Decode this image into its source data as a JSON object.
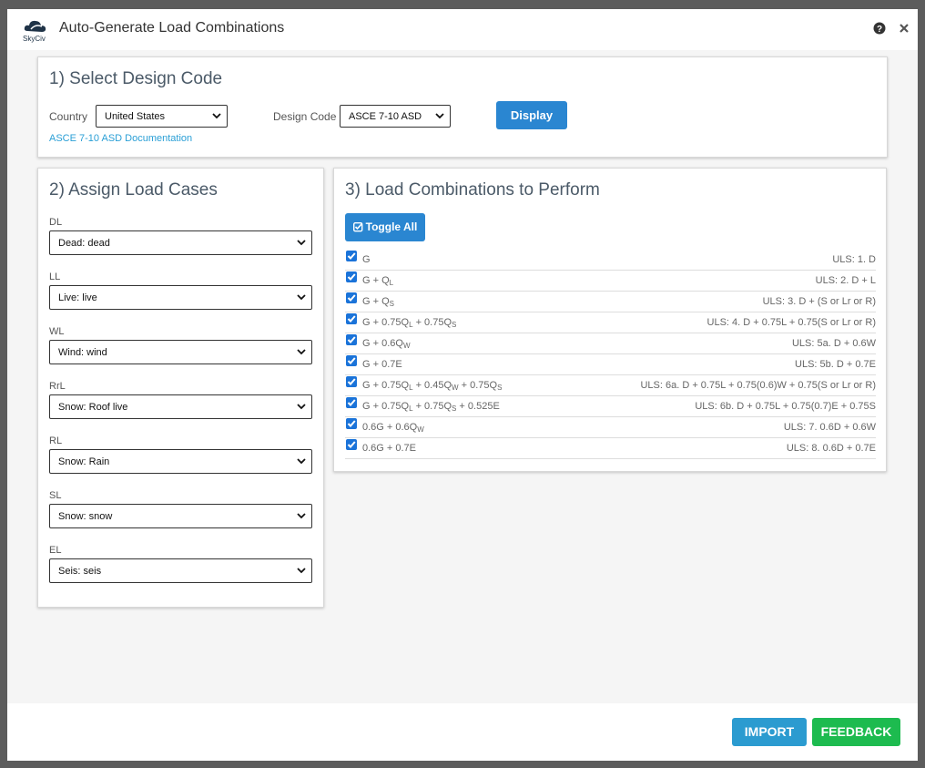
{
  "header": {
    "logo": "SkyCiv",
    "title": "Auto-Generate Load Combinations"
  },
  "design_code": {
    "title": "1) Select Design Code",
    "country_label": "Country",
    "country": "United States",
    "design_code_label": "Design Code",
    "design_code": "ASCE 7-10 ASD",
    "display_button": "Display",
    "documentation_link": "ASCE 7-10 ASD Documentation"
  },
  "load_cases": {
    "title": "2) Assign Load Cases",
    "fields": [
      {
        "label": "DL",
        "value": "Dead: dead"
      },
      {
        "label": "LL",
        "value": "Live: live"
      },
      {
        "label": "WL",
        "value": "Wind: wind"
      },
      {
        "label": "RrL",
        "value": "Snow: Roof live"
      },
      {
        "label": "RL",
        "value": "Snow: Rain"
      },
      {
        "label": "SL",
        "value": "Snow: snow"
      },
      {
        "label": "EL",
        "value": "Seis: seis"
      }
    ]
  },
  "combinations": {
    "title": "3) Load Combinations to Perform",
    "toggle_button": "Toggle All",
    "rows": [
      {
        "checked": true,
        "formula": [
          "G"
        ],
        "code": "ULS: 1. D"
      },
      {
        "checked": true,
        "formula": [
          "G + Q",
          "L"
        ],
        "code": "ULS: 2. D + L"
      },
      {
        "checked": true,
        "formula": [
          "G + Q",
          "S"
        ],
        "code": "ULS: 3. D + (S or Lr or R)"
      },
      {
        "checked": true,
        "formula": [
          "G + 0.75Q",
          "L",
          " + 0.75Q",
          "S"
        ],
        "code": "ULS: 4. D + 0.75L + 0.75(S or Lr or R)"
      },
      {
        "checked": true,
        "formula": [
          "G + 0.6Q",
          "W"
        ],
        "code": "ULS: 5a. D + 0.6W"
      },
      {
        "checked": true,
        "formula": [
          "G + 0.7E"
        ],
        "code": "ULS: 5b. D + 0.7E"
      },
      {
        "checked": true,
        "formula": [
          "G + 0.75Q",
          "L",
          " + 0.45Q",
          "W",
          " + 0.75Q",
          "S"
        ],
        "code": "ULS: 6a. D + 0.75L + 0.75(0.6)W + 0.75(S or Lr or R)"
      },
      {
        "checked": true,
        "formula": [
          "G + 0.75Q",
          "L",
          " + 0.75Q",
          "S",
          " + 0.525E"
        ],
        "code": "ULS: 6b. D + 0.75L + 0.75(0.7)E + 0.75S"
      },
      {
        "checked": true,
        "formula": [
          "0.6G + 0.6Q",
          "W"
        ],
        "code": "ULS: 7. 0.6D + 0.6W"
      },
      {
        "checked": true,
        "formula": [
          "0.6G + 0.7E"
        ],
        "code": "ULS: 8. 0.6D + 0.7E"
      }
    ]
  },
  "footer": {
    "import": "IMPORT",
    "feedback": "FEEDBACK"
  }
}
